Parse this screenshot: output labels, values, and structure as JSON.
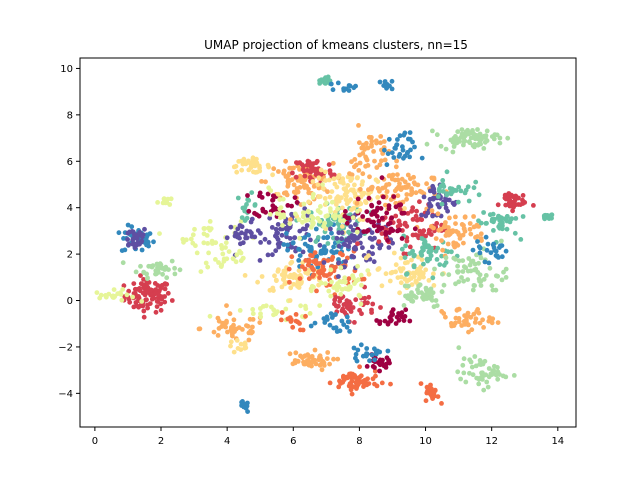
{
  "chart_data": {
    "type": "scatter",
    "title": "UMAP projection of kmeans clusters, nn=15",
    "xlabel": "",
    "ylabel": "",
    "xlim": [
      -0.45,
      14.55
    ],
    "ylim": [
      -5.45,
      10.45
    ],
    "xticks": [
      "0",
      "2",
      "4",
      "6",
      "8",
      "10",
      "12",
      "14"
    ],
    "yticks": [
      "−4",
      "−2",
      "0",
      "2",
      "4",
      "6",
      "8",
      "10"
    ],
    "xtick_values": [
      0,
      2,
      4,
      6,
      8,
      10,
      12,
      14
    ],
    "ytick_values": [
      -4,
      -2,
      0,
      2,
      4,
      6,
      8,
      10
    ],
    "grid": false,
    "legend": "none",
    "colormap": "Spectral",
    "clusters": [
      {
        "cx": 1.6,
        "cy": 0.2,
        "sx": 0.35,
        "sy": 0.35,
        "n": 90,
        "color": "#d53e4f"
      },
      {
        "cx": 1.3,
        "cy": 2.6,
        "sx": 0.25,
        "sy": 0.3,
        "n": 35,
        "color": "#3288bd"
      },
      {
        "cx": 1.2,
        "cy": 2.7,
        "sx": 0.2,
        "sy": 0.25,
        "n": 30,
        "color": "#5e4fa2"
      },
      {
        "cx": 1.9,
        "cy": 1.4,
        "sx": 0.3,
        "sy": 0.2,
        "n": 35,
        "color": "#abdda4"
      },
      {
        "cx": 0.6,
        "cy": 0.2,
        "sx": 0.3,
        "sy": 0.12,
        "n": 20,
        "color": "#e6f598"
      },
      {
        "cx": 2.1,
        "cy": 4.3,
        "sx": 0.1,
        "sy": 0.1,
        "n": 12,
        "color": "#e6f598"
      },
      {
        "cx": 3.4,
        "cy": 2.8,
        "sx": 0.5,
        "sy": 0.35,
        "n": 30,
        "color": "#e6f598"
      },
      {
        "cx": 4.5,
        "cy": 2.8,
        "sx": 0.25,
        "sy": 0.25,
        "n": 25,
        "color": "#5e4fa2"
      },
      {
        "cx": 4.6,
        "cy": 4.1,
        "sx": 0.15,
        "sy": 0.25,
        "n": 14,
        "color": "#66c2a5"
      },
      {
        "cx": 4.7,
        "cy": 5.8,
        "sx": 0.3,
        "sy": 0.15,
        "n": 35,
        "color": "#fee08b"
      },
      {
        "cx": 4.0,
        "cy": 1.8,
        "sx": 0.4,
        "sy": 0.3,
        "n": 25,
        "color": "#e6f598"
      },
      {
        "cx": 4.2,
        "cy": -1.2,
        "sx": 0.5,
        "sy": 0.3,
        "n": 45,
        "color": "#fdae61"
      },
      {
        "cx": 4.4,
        "cy": -2.0,
        "sx": 0.2,
        "sy": 0.15,
        "n": 12,
        "color": "#fee08b"
      },
      {
        "cx": 4.5,
        "cy": -4.6,
        "sx": 0.08,
        "sy": 0.12,
        "n": 10,
        "color": "#3288bd"
      },
      {
        "cx": 5.6,
        "cy": -0.5,
        "sx": 0.8,
        "sy": 0.2,
        "n": 25,
        "color": "#e6f598"
      },
      {
        "cx": 5.9,
        "cy": 3.0,
        "sx": 0.4,
        "sy": 0.5,
        "n": 60,
        "color": "#5e4fa2"
      },
      {
        "cx": 6.2,
        "cy": 5.1,
        "sx": 0.5,
        "sy": 0.4,
        "n": 90,
        "color": "#fdae61"
      },
      {
        "cx": 6.6,
        "cy": 5.6,
        "sx": 0.3,
        "sy": 0.3,
        "n": 50,
        "color": "#d53e4f"
      },
      {
        "cx": 6.0,
        "cy": 1.0,
        "sx": 0.5,
        "sy": 0.35,
        "n": 60,
        "color": "#fee08b"
      },
      {
        "cx": 5.4,
        "cy": 4.2,
        "sx": 0.3,
        "sy": 0.3,
        "n": 30,
        "color": "#9e0142"
      },
      {
        "cx": 6.4,
        "cy": -2.6,
        "sx": 0.4,
        "sy": 0.2,
        "n": 45,
        "color": "#fdae61"
      },
      {
        "cx": 6.0,
        "cy": -0.9,
        "sx": 0.2,
        "sy": 0.2,
        "n": 15,
        "color": "#f46d43"
      },
      {
        "cx": 6.8,
        "cy": 2.2,
        "sx": 0.5,
        "sy": 0.5,
        "n": 70,
        "color": "#3288bd"
      },
      {
        "cx": 7.0,
        "cy": 1.3,
        "sx": 0.5,
        "sy": 0.4,
        "n": 70,
        "color": "#f46d43"
      },
      {
        "cx": 7.3,
        "cy": 3.3,
        "sx": 0.4,
        "sy": 0.4,
        "n": 60,
        "color": "#66c2a5"
      },
      {
        "cx": 7.8,
        "cy": 4.5,
        "sx": 0.6,
        "sy": 0.5,
        "n": 100,
        "color": "#fee08b"
      },
      {
        "cx": 8.0,
        "cy": 2.5,
        "sx": 0.5,
        "sy": 0.5,
        "n": 70,
        "color": "#5e4fa2"
      },
      {
        "cx": 8.3,
        "cy": 6.2,
        "sx": 0.3,
        "sy": 0.6,
        "n": 50,
        "color": "#fdae61"
      },
      {
        "cx": 7.7,
        "cy": -0.2,
        "sx": 0.4,
        "sy": 0.3,
        "n": 45,
        "color": "#d53e4f"
      },
      {
        "cx": 7.6,
        "cy": 0.6,
        "sx": 0.4,
        "sy": 0.3,
        "n": 40,
        "color": "#e6f598"
      },
      {
        "cx": 7.9,
        "cy": -3.5,
        "sx": 0.35,
        "sy": 0.25,
        "n": 60,
        "color": "#f46d43"
      },
      {
        "cx": 8.6,
        "cy": -2.7,
        "sx": 0.15,
        "sy": 0.15,
        "n": 25,
        "color": "#9e0142"
      },
      {
        "cx": 8.2,
        "cy": -2.3,
        "sx": 0.3,
        "sy": 0.15,
        "n": 20,
        "color": "#3288bd"
      },
      {
        "cx": 7.0,
        "cy": 9.5,
        "sx": 0.15,
        "sy": 0.1,
        "n": 15,
        "color": "#66c2a5"
      },
      {
        "cx": 7.6,
        "cy": 9.2,
        "sx": 0.15,
        "sy": 0.1,
        "n": 12,
        "color": "#3288bd"
      },
      {
        "cx": 8.8,
        "cy": 9.3,
        "sx": 0.1,
        "sy": 0.1,
        "n": 10,
        "color": "#3288bd"
      },
      {
        "cx": 9.2,
        "cy": 4.8,
        "sx": 0.5,
        "sy": 0.4,
        "n": 70,
        "color": "#fdae61"
      },
      {
        "cx": 9.2,
        "cy": 6.5,
        "sx": 0.25,
        "sy": 0.35,
        "n": 30,
        "color": "#3288bd"
      },
      {
        "cx": 9.0,
        "cy": -0.8,
        "sx": 0.2,
        "sy": 0.2,
        "n": 25,
        "color": "#9e0142"
      },
      {
        "cx": 9.5,
        "cy": 1.2,
        "sx": 0.5,
        "sy": 0.4,
        "n": 60,
        "color": "#fee08b"
      },
      {
        "cx": 9.6,
        "cy": 3.2,
        "sx": 0.5,
        "sy": 0.5,
        "n": 70,
        "color": "#d53e4f"
      },
      {
        "cx": 9.8,
        "cy": 0.3,
        "sx": 0.4,
        "sy": 0.3,
        "n": 40,
        "color": "#abdda4"
      },
      {
        "cx": 10.1,
        "cy": 2.0,
        "sx": 0.4,
        "sy": 0.4,
        "n": 50,
        "color": "#66c2a5"
      },
      {
        "cx": 10.2,
        "cy": -4.0,
        "sx": 0.1,
        "sy": 0.2,
        "n": 20,
        "color": "#f46d43"
      },
      {
        "cx": 10.4,
        "cy": 4.3,
        "sx": 0.3,
        "sy": 0.4,
        "n": 40,
        "color": "#5e4fa2"
      },
      {
        "cx": 10.8,
        "cy": 4.8,
        "sx": 0.3,
        "sy": 0.3,
        "n": 30,
        "color": "#66c2a5"
      },
      {
        "cx": 10.9,
        "cy": 3.0,
        "sx": 0.5,
        "sy": 0.4,
        "n": 60,
        "color": "#fdae61"
      },
      {
        "cx": 11.3,
        "cy": 7.0,
        "sx": 0.45,
        "sy": 0.2,
        "n": 70,
        "color": "#abdda4"
      },
      {
        "cx": 11.5,
        "cy": 1.2,
        "sx": 0.5,
        "sy": 0.5,
        "n": 60,
        "color": "#abdda4"
      },
      {
        "cx": 11.2,
        "cy": -0.8,
        "sx": 0.4,
        "sy": 0.25,
        "n": 40,
        "color": "#fdae61"
      },
      {
        "cx": 11.7,
        "cy": -3.1,
        "sx": 0.35,
        "sy": 0.3,
        "n": 50,
        "color": "#abdda4"
      },
      {
        "cx": 12.2,
        "cy": 3.4,
        "sx": 0.3,
        "sy": 0.3,
        "n": 40,
        "color": "#66c2a5"
      },
      {
        "cx": 12.6,
        "cy": 4.3,
        "sx": 0.2,
        "sy": 0.2,
        "n": 35,
        "color": "#d53e4f"
      },
      {
        "cx": 12.0,
        "cy": 2.2,
        "sx": 0.25,
        "sy": 0.25,
        "n": 25,
        "color": "#3288bd"
      },
      {
        "cx": 13.7,
        "cy": 3.6,
        "sx": 0.15,
        "sy": 0.08,
        "n": 15,
        "color": "#66c2a5"
      },
      {
        "cx": 8.5,
        "cy": 3.5,
        "sx": 0.5,
        "sy": 0.5,
        "n": 60,
        "color": "#9e0142"
      },
      {
        "cx": 6.5,
        "cy": 3.8,
        "sx": 0.6,
        "sy": 0.5,
        "n": 60,
        "color": "#e6f598"
      },
      {
        "cx": 7.2,
        "cy": -1.0,
        "sx": 0.3,
        "sy": 0.2,
        "n": 20,
        "color": "#3288bd"
      }
    ]
  }
}
